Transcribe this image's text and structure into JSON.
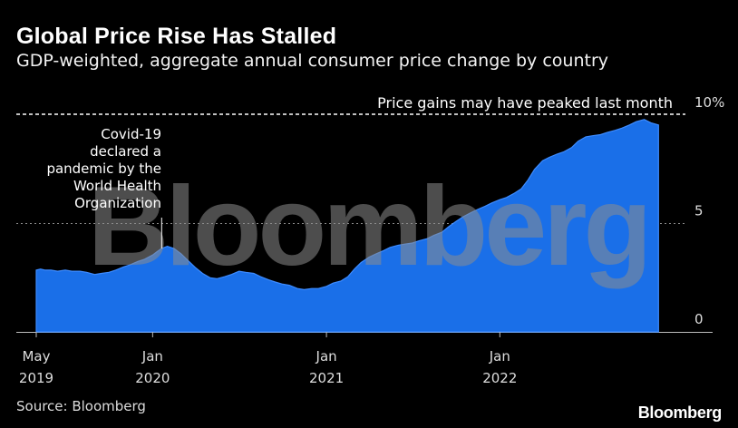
{
  "header": {
    "title": "Global Price Rise Has Stalled",
    "subtitle": "GDP-weighted, aggregate annual consumer price change by country"
  },
  "footer": {
    "source": "Source: Bloomberg",
    "brand": "Bloomberg"
  },
  "watermark": "Bloomberg",
  "colors": {
    "background": "#000000",
    "area": "#1a6fe8",
    "area_line": "#3d8bff",
    "grid": "#8a8a8a",
    "text": "#ffffff",
    "watermark": "#808080"
  },
  "chart_data": {
    "type": "area",
    "title": "Global Price Rise Has Stalled",
    "subtitle": "GDP-weighted, aggregate annual consumer price change by country",
    "xlabel": "",
    "ylabel": "",
    "ylim": [
      0,
      10
    ],
    "y_ticks": [
      {
        "value": 0,
        "label": "0"
      },
      {
        "value": 5,
        "label": "5"
      },
      {
        "value": 10,
        "label": "10%"
      }
    ],
    "x_ticks": [
      {
        "date": "2019-05",
        "line1": "May",
        "line2": "2019"
      },
      {
        "date": "2020-01",
        "line1": "Jan",
        "line2": "2020"
      },
      {
        "date": "2021-01",
        "line1": "Jan",
        "line2": "2021"
      },
      {
        "date": "2022-01",
        "line1": "Jan",
        "line2": "2022"
      }
    ],
    "x_domain": [
      "2019-05-01",
      "2022-12-31"
    ],
    "series": [
      {
        "name": "Aggregate annual consumer price change",
        "unit": "%",
        "points": [
          [
            "2019-05-01",
            2.85
          ],
          [
            "2019-05-10",
            2.9
          ],
          [
            "2019-05-20",
            2.85
          ],
          [
            "2019-06-01",
            2.85
          ],
          [
            "2019-06-15",
            2.8
          ],
          [
            "2019-07-01",
            2.85
          ],
          [
            "2019-07-15",
            2.8
          ],
          [
            "2019-08-01",
            2.8
          ],
          [
            "2019-08-15",
            2.75
          ],
          [
            "2019-09-01",
            2.65
          ],
          [
            "2019-09-15",
            2.7
          ],
          [
            "2019-10-01",
            2.75
          ],
          [
            "2019-10-15",
            2.85
          ],
          [
            "2019-11-01",
            3.0
          ],
          [
            "2019-11-15",
            3.1
          ],
          [
            "2019-12-01",
            3.25
          ],
          [
            "2019-12-15",
            3.35
          ],
          [
            "2020-01-01",
            3.55
          ],
          [
            "2020-01-10",
            3.7
          ],
          [
            "2020-01-20",
            3.85
          ],
          [
            "2020-02-01",
            3.95
          ],
          [
            "2020-02-15",
            3.85
          ],
          [
            "2020-03-01",
            3.6
          ],
          [
            "2020-03-15",
            3.3
          ],
          [
            "2020-04-01",
            2.95
          ],
          [
            "2020-04-15",
            2.7
          ],
          [
            "2020-05-01",
            2.5
          ],
          [
            "2020-05-15",
            2.45
          ],
          [
            "2020-06-01",
            2.55
          ],
          [
            "2020-06-15",
            2.65
          ],
          [
            "2020-07-01",
            2.8
          ],
          [
            "2020-07-15",
            2.75
          ],
          [
            "2020-08-01",
            2.7
          ],
          [
            "2020-08-15",
            2.55
          ],
          [
            "2020-09-01",
            2.4
          ],
          [
            "2020-09-15",
            2.3
          ],
          [
            "2020-10-01",
            2.2
          ],
          [
            "2020-10-15",
            2.15
          ],
          [
            "2020-11-01",
            2.0
          ],
          [
            "2020-11-15",
            1.95
          ],
          [
            "2020-12-01",
            2.0
          ],
          [
            "2020-12-15",
            2.0
          ],
          [
            "2021-01-01",
            2.1
          ],
          [
            "2021-01-15",
            2.25
          ],
          [
            "2021-02-01",
            2.35
          ],
          [
            "2021-02-15",
            2.55
          ],
          [
            "2021-03-01",
            2.9
          ],
          [
            "2021-03-15",
            3.2
          ],
          [
            "2021-04-01",
            3.45
          ],
          [
            "2021-04-15",
            3.6
          ],
          [
            "2021-05-01",
            3.75
          ],
          [
            "2021-05-15",
            3.9
          ],
          [
            "2021-06-01",
            4.0
          ],
          [
            "2021-06-15",
            4.05
          ],
          [
            "2021-07-01",
            4.1
          ],
          [
            "2021-07-15",
            4.2
          ],
          [
            "2021-08-01",
            4.3
          ],
          [
            "2021-08-15",
            4.45
          ],
          [
            "2021-09-01",
            4.6
          ],
          [
            "2021-09-15",
            4.85
          ],
          [
            "2021-10-01",
            5.1
          ],
          [
            "2021-10-15",
            5.3
          ],
          [
            "2021-11-01",
            5.5
          ],
          [
            "2021-11-15",
            5.65
          ],
          [
            "2021-12-01",
            5.8
          ],
          [
            "2021-12-15",
            5.95
          ],
          [
            "2022-01-01",
            6.1
          ],
          [
            "2022-01-15",
            6.2
          ],
          [
            "2022-02-01",
            6.4
          ],
          [
            "2022-02-15",
            6.6
          ],
          [
            "2022-03-01",
            7.0
          ],
          [
            "2022-03-15",
            7.5
          ],
          [
            "2022-04-01",
            7.9
          ],
          [
            "2022-04-15",
            8.05
          ],
          [
            "2022-05-01",
            8.2
          ],
          [
            "2022-05-15",
            8.3
          ],
          [
            "2022-06-01",
            8.5
          ],
          [
            "2022-06-15",
            8.8
          ],
          [
            "2022-07-01",
            9.0
          ],
          [
            "2022-07-15",
            9.05
          ],
          [
            "2022-08-01",
            9.1
          ],
          [
            "2022-08-15",
            9.2
          ],
          [
            "2022-09-01",
            9.3
          ],
          [
            "2022-09-15",
            9.4
          ],
          [
            "2022-10-01",
            9.55
          ],
          [
            "2022-10-15",
            9.7
          ],
          [
            "2022-11-01",
            9.8
          ],
          [
            "2022-11-15",
            9.65
          ],
          [
            "2022-12-01",
            9.55
          ]
        ]
      }
    ],
    "reference_lines": [
      {
        "value": 10,
        "style": "dashed",
        "label": "Price gains may have peaked last month"
      }
    ],
    "annotations": [
      {
        "date": "2020-01-20",
        "lines": [
          "Covid-19",
          "declared a",
          "pandemic by the",
          "World Health",
          "Organization"
        ]
      }
    ]
  }
}
